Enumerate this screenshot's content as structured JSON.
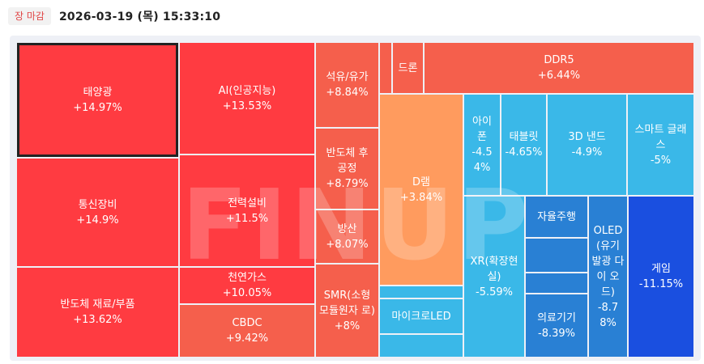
{
  "header": {
    "status_badge": "장 마감",
    "datetime": "2026-03-19 (목) 15:33:10"
  },
  "watermark": "FINUP",
  "colors": {
    "strong_up": "#ff3b41",
    "mid_up": "#f55f4c",
    "orange": "#ff9b5e",
    "light_blue": "#3ab8e8",
    "mid_blue": "#2980d4",
    "deep_blue": "#1a4fe0"
  },
  "tiles": {
    "solar": {
      "name": "태양광",
      "change": "+14.97%"
    },
    "ai": {
      "name": "AI(인공지능)",
      "change": "+13.53%"
    },
    "oil": {
      "name": "석유/유가",
      "change": "+8.84%"
    },
    "drone": {
      "name": "드론",
      "change": ""
    },
    "ddr5": {
      "name": "DDR5",
      "change": "+6.44%"
    },
    "telecom": {
      "name": "통신장비",
      "change": "+14.9%"
    },
    "power": {
      "name": "전력설비",
      "change": "+11.5%"
    },
    "semi_back": {
      "name": "반도체 후 공정",
      "change": "+8.79%"
    },
    "defense": {
      "name": "방산",
      "change": "+8.07%"
    },
    "dram": {
      "name": "D램",
      "change": "+3.84%"
    },
    "iphone": {
      "name": "아이 폰",
      "change": "-4.5 4%"
    },
    "tablet": {
      "name": "태블릿",
      "change": "-4.65%"
    },
    "nand3d": {
      "name": "3D 낸드",
      "change": "-4.9%"
    },
    "smartglass": {
      "name": "스마트 글래스",
      "change": "-5%"
    },
    "semi_mat": {
      "name": "반도체 재료/부품",
      "change": "+13.62%"
    },
    "gas": {
      "name": "천연가스",
      "change": "+10.05%"
    },
    "cbdc": {
      "name": "CBDC",
      "change": "+9.42%"
    },
    "smr": {
      "name": "SMR(소형 모듈원자 로)",
      "change": "+8%"
    },
    "microled": {
      "name": "마이크로LED",
      "change": ""
    },
    "xr": {
      "name": "XR(확장현 실)",
      "change": "-5.59%"
    },
    "autodrive": {
      "name": "자율주행",
      "change": ""
    },
    "medical": {
      "name": "의료기기",
      "change": "-8.39%"
    },
    "oled": {
      "name": "OLED (유기 발광 다이 오드)",
      "change": "-8.7 8%"
    },
    "game": {
      "name": "게임",
      "change": "-11.15%"
    }
  }
}
